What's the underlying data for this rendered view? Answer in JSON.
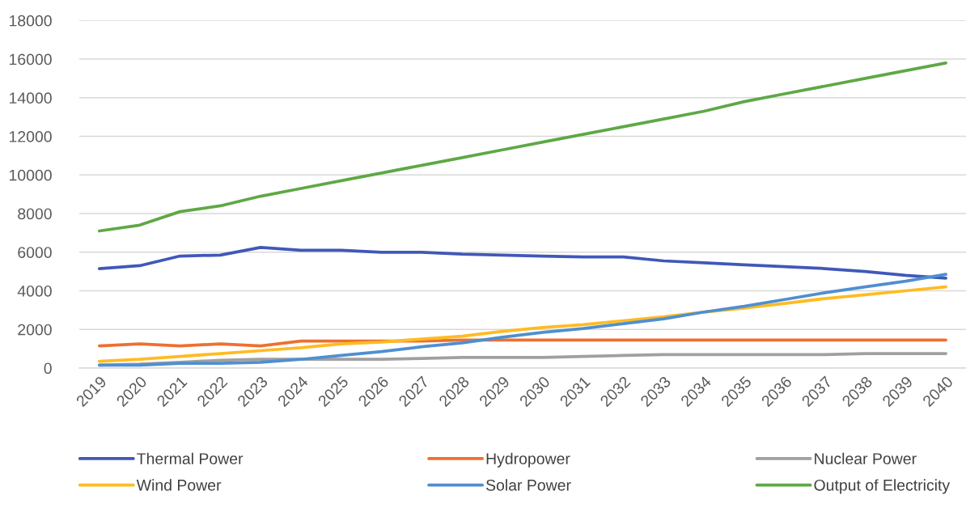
{
  "chart_data": {
    "type": "line",
    "categories": [
      "2019",
      "2020",
      "2021",
      "2022",
      "2023",
      "2024",
      "2025",
      "2026",
      "2027",
      "2028",
      "2029",
      "2030",
      "2031",
      "2032",
      "2033",
      "2034",
      "2035",
      "2036",
      "2037",
      "2038",
      "2039",
      "2040"
    ],
    "series": [
      {
        "name": "Thermal Power",
        "color": "#4058b8",
        "values": [
          5150,
          5300,
          5800,
          5850,
          6250,
          6100,
          6100,
          6000,
          6000,
          5900,
          5850,
          5800,
          5750,
          5750,
          5550,
          5450,
          5350,
          5250,
          5150,
          5000,
          4800,
          4650
        ]
      },
      {
        "name": "Hydropower",
        "color": "#ed7031",
        "values": [
          1150,
          1250,
          1150,
          1250,
          1150,
          1400,
          1400,
          1400,
          1400,
          1450,
          1450,
          1450,
          1450,
          1450,
          1450,
          1450,
          1450,
          1450,
          1450,
          1450,
          1450,
          1450
        ]
      },
      {
        "name": "Nuclear Power",
        "color": "#a0a0a0",
        "values": [
          150,
          200,
          300,
          400,
          450,
          450,
          450,
          450,
          500,
          550,
          550,
          550,
          600,
          650,
          700,
          700,
          700,
          700,
          700,
          750,
          750,
          750
        ]
      },
      {
        "name": "Wind Power",
        "color": "#ffbb22",
        "values": [
          350,
          450,
          600,
          750,
          900,
          1050,
          1250,
          1350,
          1500,
          1650,
          1900,
          2100,
          2250,
          2450,
          2650,
          2900,
          3100,
          3350,
          3600,
          3800,
          4000,
          4200
        ]
      },
      {
        "name": "Solar Power",
        "color": "#4f8fd0",
        "values": [
          150,
          150,
          250,
          250,
          300,
          450,
          650,
          850,
          1100,
          1300,
          1600,
          1850,
          2050,
          2300,
          2550,
          2900,
          3200,
          3550,
          3900,
          4200,
          4500,
          4850
        ]
      },
      {
        "name": "Output of Electricity",
        "color": "#5fa845",
        "values": [
          7100,
          7400,
          8100,
          8400,
          8900,
          9300,
          9700,
          10100,
          10500,
          10900,
          11300,
          11700,
          12100,
          12500,
          12900,
          13300,
          13800,
          14200,
          14600,
          15000,
          15400,
          15800
        ]
      }
    ],
    "ylim": [
      0,
      18000
    ],
    "yticks": [
      0,
      2000,
      4000,
      6000,
      8000,
      10000,
      12000,
      14000,
      16000,
      18000
    ],
    "grid": "y",
    "legend": "bottom",
    "marker": "none",
    "line_style": "solid"
  }
}
